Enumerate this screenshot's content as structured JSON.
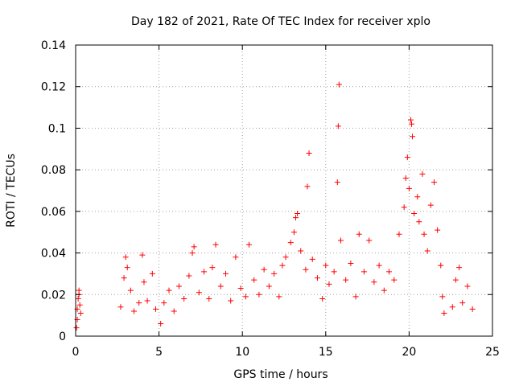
{
  "chart_data": {
    "type": "scatter",
    "title": "Day 182 of 2021, Rate Of TEC Index for receiver xplo",
    "xlabel": "GPS time / hours",
    "ylabel": "ROTI / TECUs",
    "xlim": [
      0,
      25
    ],
    "ylim": [
      0,
      0.14
    ],
    "xticks": [
      0,
      5,
      10,
      15,
      20,
      25
    ],
    "xtick_labels": [
      "0",
      "5",
      "10",
      "15",
      "20",
      "25"
    ],
    "yticks": [
      0,
      0.02,
      0.04,
      0.06,
      0.08,
      0.1,
      0.12,
      0.14
    ],
    "ytick_labels": [
      "0",
      "0.02",
      "0.04",
      "0.06",
      "0.08",
      "0.1",
      "0.12",
      "0.14"
    ],
    "grid": true,
    "marker": "plus",
    "color": "#ff0000",
    "series": [
      {
        "name": "ROTI",
        "points": [
          [
            0.05,
            0.004
          ],
          [
            0.1,
            0.013
          ],
          [
            0.15,
            0.018
          ],
          [
            0.2,
            0.022
          ],
          [
            0.25,
            0.015
          ],
          [
            0.3,
            0.011
          ],
          [
            0.1,
            0.008
          ],
          [
            0.2,
            0.02
          ],
          [
            2.7,
            0.014
          ],
          [
            2.9,
            0.028
          ],
          [
            3.0,
            0.038
          ],
          [
            3.1,
            0.033
          ],
          [
            3.3,
            0.022
          ],
          [
            3.5,
            0.012
          ],
          [
            3.8,
            0.016
          ],
          [
            4.0,
            0.039
          ],
          [
            4.1,
            0.026
          ],
          [
            4.3,
            0.017
          ],
          [
            4.6,
            0.03
          ],
          [
            4.8,
            0.013
          ],
          [
            5.1,
            0.006
          ],
          [
            5.3,
            0.016
          ],
          [
            5.6,
            0.022
          ],
          [
            5.9,
            0.012
          ],
          [
            6.2,
            0.024
          ],
          [
            6.5,
            0.018
          ],
          [
            6.8,
            0.029
          ],
          [
            7.0,
            0.04
          ],
          [
            7.1,
            0.043
          ],
          [
            7.4,
            0.021
          ],
          [
            7.7,
            0.031
          ],
          [
            8.0,
            0.018
          ],
          [
            8.2,
            0.033
          ],
          [
            8.4,
            0.044
          ],
          [
            8.7,
            0.024
          ],
          [
            9.0,
            0.03
          ],
          [
            9.3,
            0.017
          ],
          [
            9.6,
            0.038
          ],
          [
            9.9,
            0.023
          ],
          [
            10.2,
            0.019
          ],
          [
            10.4,
            0.044
          ],
          [
            10.7,
            0.027
          ],
          [
            11.0,
            0.02
          ],
          [
            11.3,
            0.032
          ],
          [
            11.6,
            0.024
          ],
          [
            11.9,
            0.03
          ],
          [
            12.2,
            0.019
          ],
          [
            12.4,
            0.034
          ],
          [
            12.6,
            0.038
          ],
          [
            12.9,
            0.045
          ],
          [
            13.1,
            0.05
          ],
          [
            13.2,
            0.057
          ],
          [
            13.3,
            0.059
          ],
          [
            13.5,
            0.041
          ],
          [
            13.8,
            0.032
          ],
          [
            13.9,
            0.072
          ],
          [
            14.0,
            0.088
          ],
          [
            14.2,
            0.037
          ],
          [
            14.5,
            0.028
          ],
          [
            14.8,
            0.018
          ],
          [
            15.0,
            0.034
          ],
          [
            15.2,
            0.025
          ],
          [
            15.5,
            0.031
          ],
          [
            15.7,
            0.074
          ],
          [
            15.75,
            0.101
          ],
          [
            15.8,
            0.121
          ],
          [
            15.9,
            0.046
          ],
          [
            16.2,
            0.027
          ],
          [
            16.5,
            0.035
          ],
          [
            16.8,
            0.019
          ],
          [
            17.0,
            0.049
          ],
          [
            17.3,
            0.031
          ],
          [
            17.6,
            0.046
          ],
          [
            17.9,
            0.026
          ],
          [
            18.2,
            0.034
          ],
          [
            18.5,
            0.022
          ],
          [
            18.8,
            0.031
          ],
          [
            19.1,
            0.027
          ],
          [
            19.4,
            0.049
          ],
          [
            19.7,
            0.062
          ],
          [
            19.8,
            0.076
          ],
          [
            19.9,
            0.086
          ],
          [
            20.0,
            0.071
          ],
          [
            20.1,
            0.104
          ],
          [
            20.15,
            0.102
          ],
          [
            20.2,
            0.096
          ],
          [
            20.3,
            0.059
          ],
          [
            20.5,
            0.067
          ],
          [
            20.6,
            0.055
          ],
          [
            20.8,
            0.078
          ],
          [
            20.9,
            0.049
          ],
          [
            21.1,
            0.041
          ],
          [
            21.3,
            0.063
          ],
          [
            21.5,
            0.074
          ],
          [
            21.7,
            0.051
          ],
          [
            21.9,
            0.034
          ],
          [
            22.0,
            0.019
          ],
          [
            22.1,
            0.011
          ],
          [
            22.6,
            0.014
          ],
          [
            22.8,
            0.027
          ],
          [
            23.0,
            0.033
          ],
          [
            23.2,
            0.016
          ],
          [
            23.5,
            0.024
          ],
          [
            23.8,
            0.013
          ]
        ]
      }
    ]
  }
}
